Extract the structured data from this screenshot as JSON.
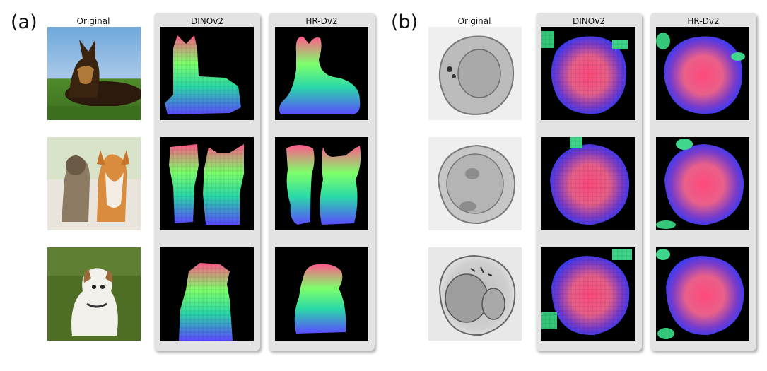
{
  "panels": [
    {
      "label": "(a)",
      "col_titles": [
        "Original",
        "DINOv2",
        "HR-Dv2"
      ]
    },
    {
      "label": "(b)",
      "col_titles": [
        "Original",
        "DINOv2",
        "HR-Dv2"
      ]
    }
  ]
}
